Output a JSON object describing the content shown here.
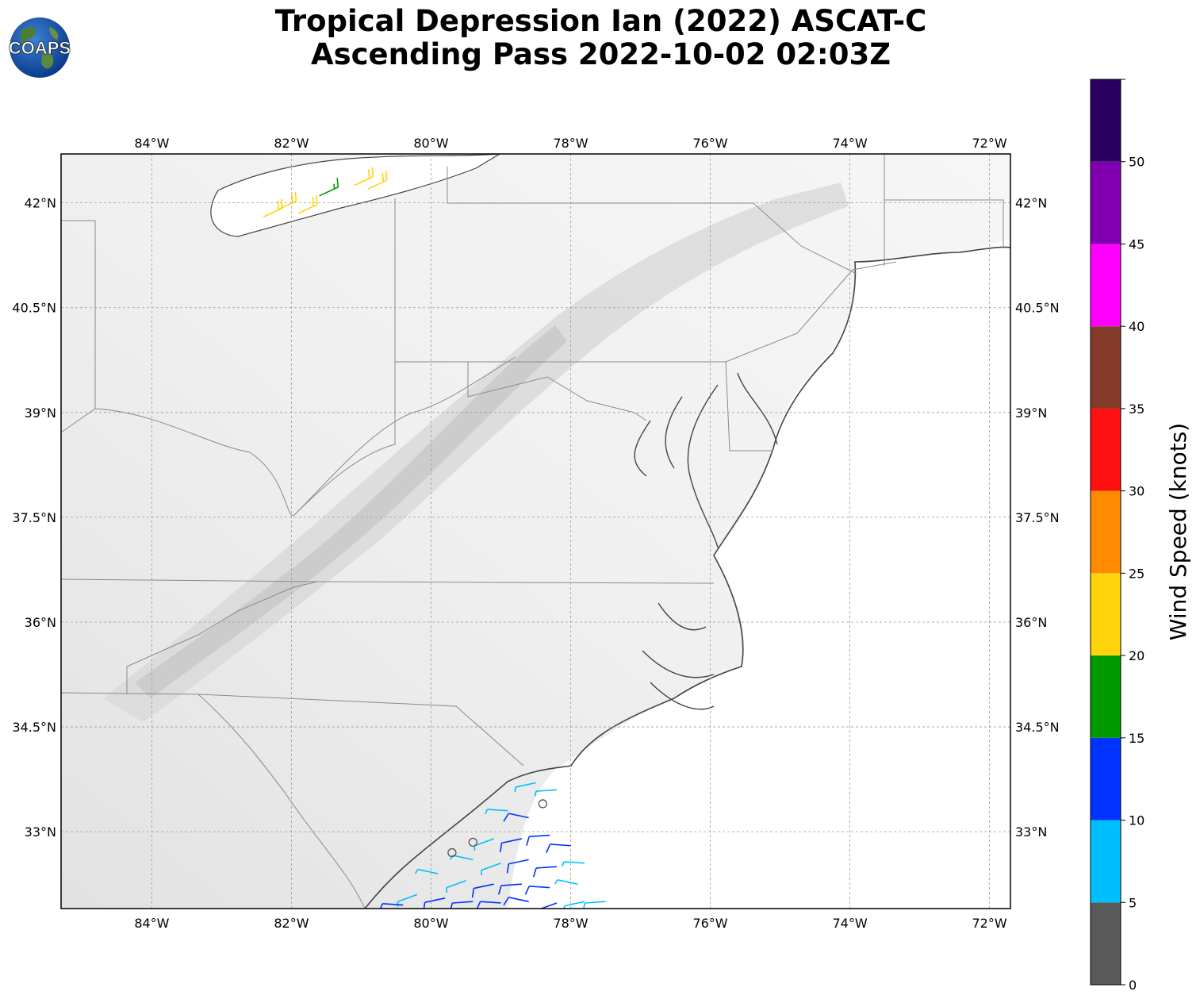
{
  "title": {
    "line1": "Tropical Depression Ian (2022) ASCAT-C",
    "line2": "Ascending Pass 2022-10-02 02:03Z"
  },
  "logo": {
    "text": "COAPS"
  },
  "map": {
    "lon_range": [
      -85.3,
      -71.7
    ],
    "lat_range": [
      31.9,
      42.7
    ],
    "lon_ticks": [
      "84°W",
      "82°W",
      "80°W",
      "78°W",
      "76°W",
      "74°W",
      "72°W"
    ],
    "lon_values": [
      -84,
      -82,
      -80,
      -78,
      -76,
      -74,
      -72
    ],
    "lat_ticks": [
      "42°N",
      "40.5°N",
      "39°N",
      "37.5°N",
      "36°N",
      "34.5°N",
      "33°N"
    ],
    "lat_values": [
      42,
      40.5,
      39,
      37.5,
      36,
      34.5,
      33
    ],
    "grid": true,
    "background": "grayscale terrain",
    "wind_barbs": [
      {
        "lon": -82.2,
        "lat": 41.9,
        "speed": 22
      },
      {
        "lon": -81.9,
        "lat": 41.85,
        "speed": 22
      },
      {
        "lon": -81.6,
        "lat": 42.1,
        "speed": 17
      },
      {
        "lon": -81.1,
        "lat": 42.25,
        "speed": 22
      },
      {
        "lon": -80.9,
        "lat": 42.2,
        "speed": 22
      },
      {
        "lon": -82.4,
        "lat": 41.8,
        "speed": 22
      },
      {
        "lon": -78.5,
        "lat": 33.7,
        "speed": 8
      },
      {
        "lon": -78.2,
        "lat": 33.6,
        "speed": 8
      },
      {
        "lon": -78.9,
        "lat": 33.3,
        "speed": 8
      },
      {
        "lon": -78.6,
        "lat": 33.2,
        "speed": 12
      },
      {
        "lon": -79.1,
        "lat": 32.9,
        "speed": 8
      },
      {
        "lon": -78.7,
        "lat": 32.9,
        "speed": 12
      },
      {
        "lon": -78.3,
        "lat": 32.95,
        "speed": 12
      },
      {
        "lon": -78.0,
        "lat": 32.8,
        "speed": 12
      },
      {
        "lon": -79.4,
        "lat": 32.6,
        "speed": 8
      },
      {
        "lon": -79.0,
        "lat": 32.55,
        "speed": 8
      },
      {
        "lon": -78.6,
        "lat": 32.6,
        "speed": 12
      },
      {
        "lon": -78.2,
        "lat": 32.5,
        "speed": 12
      },
      {
        "lon": -77.8,
        "lat": 32.55,
        "speed": 8
      },
      {
        "lon": -79.9,
        "lat": 32.4,
        "speed": 8
      },
      {
        "lon": -79.5,
        "lat": 32.3,
        "speed": 8
      },
      {
        "lon": -79.1,
        "lat": 32.25,
        "speed": 12
      },
      {
        "lon": -78.7,
        "lat": 32.25,
        "speed": 12
      },
      {
        "lon": -78.3,
        "lat": 32.2,
        "speed": 12
      },
      {
        "lon": -77.9,
        "lat": 32.25,
        "speed": 8
      },
      {
        "lon": -80.2,
        "lat": 32.1,
        "speed": 8
      },
      {
        "lon": -79.8,
        "lat": 32.05,
        "speed": 12
      },
      {
        "lon": -79.4,
        "lat": 32.0,
        "speed": 12
      },
      {
        "lon": -79.0,
        "lat": 31.98,
        "speed": 12
      },
      {
        "lon": -78.6,
        "lat": 32.0,
        "speed": 12
      },
      {
        "lon": -78.2,
        "lat": 31.98,
        "speed": 12
      },
      {
        "lon": -77.8,
        "lat": 32.0,
        "speed": 8
      },
      {
        "lon": -77.5,
        "lat": 32.0,
        "speed": 8
      },
      {
        "lon": -80.4,
        "lat": 31.95,
        "speed": 12
      },
      {
        "lon": -78.4,
        "lat": 33.4,
        "speed": 3
      },
      {
        "lon": -79.7,
        "lat": 32.7,
        "speed": 3
      },
      {
        "lon": -79.4,
        "lat": 32.85,
        "speed": 3
      }
    ]
  },
  "colorbar": {
    "label": "Wind Speed (knots)",
    "bounds": [
      0,
      5,
      10,
      15,
      20,
      25,
      30,
      35,
      40,
      45,
      50,
      55
    ],
    "tick_labels": [
      "0",
      "5",
      "10",
      "15",
      "20",
      "25",
      "30",
      "35",
      "40",
      "45",
      "50"
    ],
    "colors": [
      "#595959",
      "#00bfff",
      "#0033ff",
      "#009900",
      "#ffd40d",
      "#ff8c00",
      "#ff1010",
      "#843b2a",
      "#ff00ff",
      "#8000b0",
      "#2b0060"
    ]
  }
}
